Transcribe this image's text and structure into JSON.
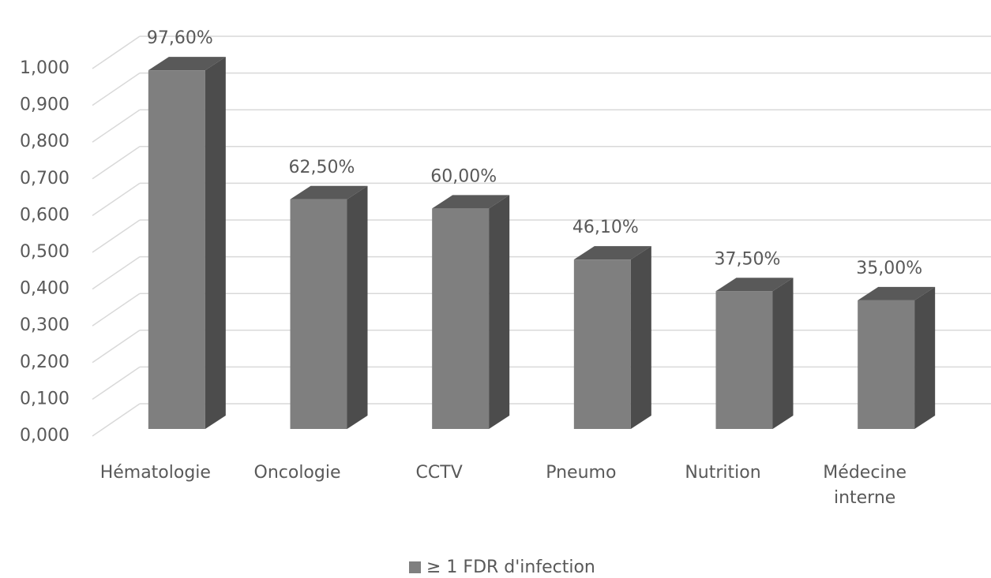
{
  "chart_data": {
    "type": "bar",
    "categories": [
      "Hématologie",
      "Oncologie",
      "CCTV",
      "Pneumo",
      "Nutrition",
      "Médecine interne"
    ],
    "series": [
      {
        "name": "≥ 1 FDR d'infection",
        "color": "#7f7f7f",
        "values": [
          0.976,
          0.625,
          0.6,
          0.461,
          0.375,
          0.35
        ],
        "value_labels": [
          "97,60%",
          "62,50%",
          "60,00%",
          "46,10%",
          "37,50%",
          "35,00%"
        ]
      }
    ],
    "ylim": [
      0,
      1
    ],
    "yticks": [
      {
        "value": 0,
        "label": "0,000"
      },
      {
        "value": 0.1,
        "label": "0,100"
      },
      {
        "value": 0.2,
        "label": "0,200"
      },
      {
        "value": 0.3,
        "label": "0,300"
      },
      {
        "value": 0.4,
        "label": "0,400"
      },
      {
        "value": 0.5,
        "label": "0,500"
      },
      {
        "value": 0.6,
        "label": "0,600"
      },
      {
        "value": 0.7,
        "label": "0,700"
      },
      {
        "value": 0.8,
        "label": "0,800"
      },
      {
        "value": 0.9,
        "label": "0,900"
      },
      {
        "value": 1,
        "label": "1,000"
      }
    ],
    "grid": true,
    "legend": "bottom"
  }
}
